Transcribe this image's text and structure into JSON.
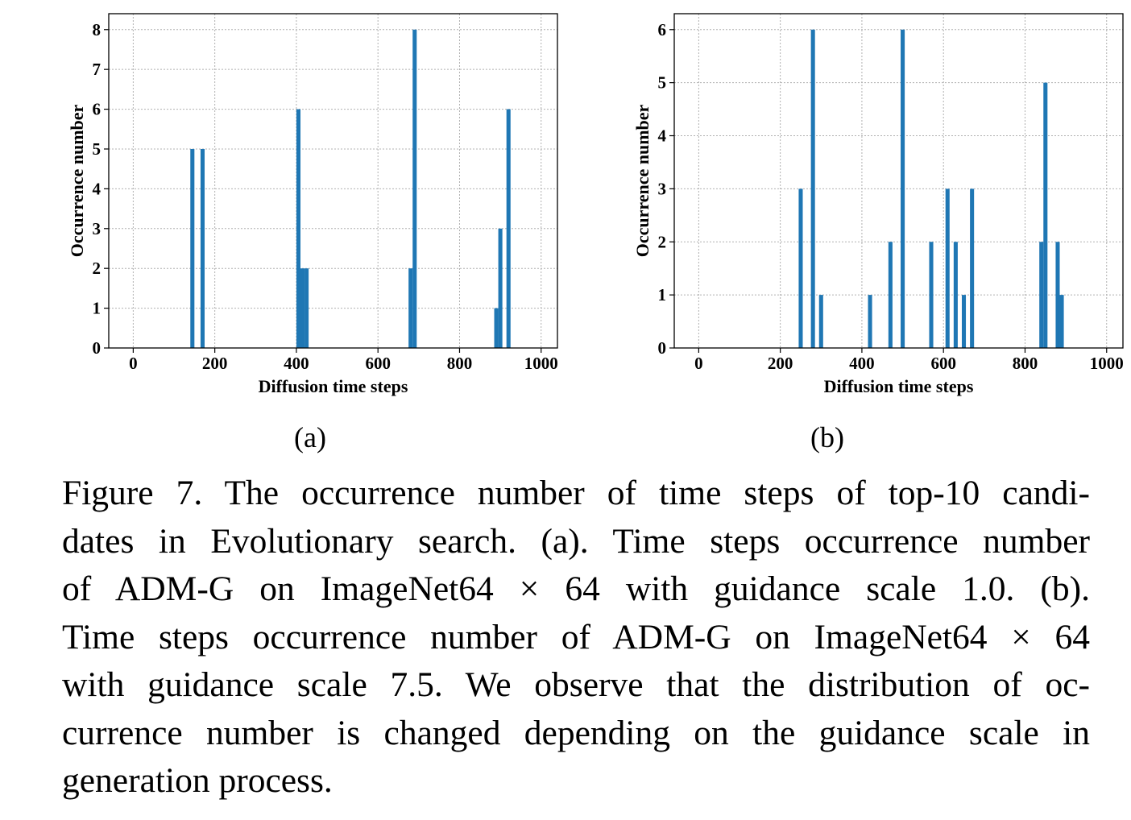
{
  "chart_data": [
    {
      "type": "bar",
      "xlabel": "Diffusion time steps",
      "ylabel": "Occurrence number",
      "xlim": [
        -60,
        1040
      ],
      "ylim": [
        0,
        8.4
      ],
      "xticks": [
        0,
        200,
        400,
        600,
        800,
        1000
      ],
      "yticks": [
        0,
        1,
        2,
        3,
        4,
        5,
        6,
        7,
        8
      ],
      "grid": true,
      "color": "#1f77b4",
      "bin_width": 10,
      "x": [
        145,
        170,
        405,
        415,
        425,
        680,
        690,
        890,
        900,
        920
      ],
      "values": [
        5,
        5,
        6,
        2,
        2,
        2,
        8,
        1,
        3,
        6
      ]
    },
    {
      "type": "bar",
      "xlabel": "Diffusion time steps",
      "ylabel": "Occurrence number",
      "xlim": [
        -60,
        1040
      ],
      "ylim": [
        0,
        6.3
      ],
      "xticks": [
        0,
        200,
        400,
        600,
        800,
        1000
      ],
      "yticks": [
        0,
        1,
        2,
        3,
        4,
        5,
        6
      ],
      "grid": true,
      "color": "#1f77b4",
      "bin_width": 10,
      "x": [
        250,
        280,
        300,
        420,
        470,
        500,
        570,
        610,
        630,
        650,
        670,
        840,
        850,
        880,
        890
      ],
      "values": [
        3,
        6,
        1,
        1,
        2,
        6,
        2,
        3,
        2,
        1,
        3,
        2,
        5,
        2,
        1
      ]
    }
  ],
  "panels": {
    "a": "(a)",
    "b": "(b)"
  },
  "caption": {
    "line1": "Figure 7. The occurrence number of time steps of top-10 candi-",
    "line2": "dates in Evolutionary search. (a). Time steps occurrence number",
    "line3": "of ADM-G on ImageNet64 × 64 with guidance scale 1.0. (b).",
    "line4": "Time steps occurrence number of ADM-G on ImageNet64 × 64",
    "line5": "with guidance scale 7.5. We observe that the distribution of oc-",
    "line6": "currence number is changed depending on the guidance scale in",
    "line7": "generation process."
  }
}
